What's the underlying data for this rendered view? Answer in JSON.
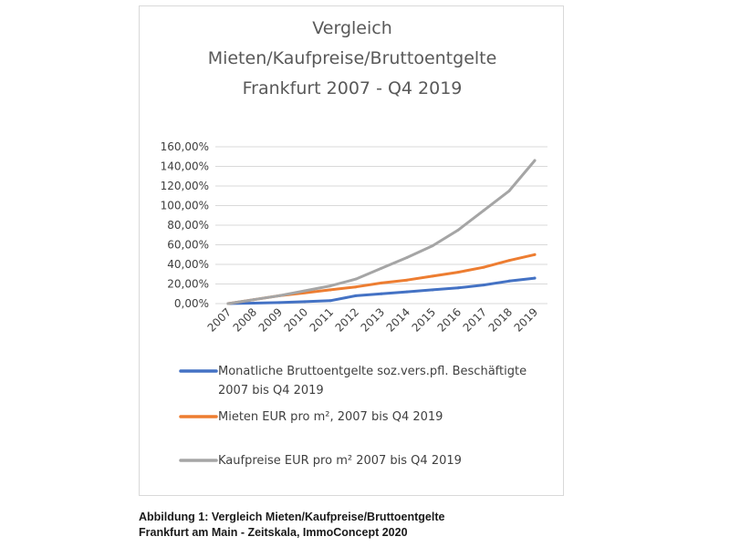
{
  "chart_data": {
    "type": "line",
    "title": [
      "Vergleich",
      "Mieten/Kaufpreise/Bruttoentgelte",
      "Frankfurt 2007 - Q4 2019"
    ],
    "categories": [
      "2007",
      "2008",
      "2009",
      "2010",
      "2011",
      "2012",
      "2013",
      "2014",
      "2015",
      "2016",
      "2017",
      "2018",
      "2019"
    ],
    "yticks": [
      "0,00%",
      "20,00%",
      "40,00%",
      "60,00%",
      "80,00%",
      "100,00%",
      "120,00%",
      "140,00%",
      "160,00%"
    ],
    "ylim": [
      0,
      160
    ],
    "grid": true,
    "legend_position": "bottom",
    "series": [
      {
        "name": [
          "Monatliche Bruttoentgelte soz.vers.pfl. Beschäftigte",
          "2007 bis Q4 2019"
        ],
        "color": "#4472c4",
        "values": [
          0,
          0.5,
          1,
          2,
          3,
          8,
          10,
          12,
          14,
          16,
          19,
          23,
          26
        ]
      },
      {
        "name": [
          "Mieten EUR pro m², 2007 bis Q4 2019"
        ],
        "color": "#ed7d31",
        "values": [
          0,
          4,
          8,
          11,
          14,
          17,
          21,
          24,
          28,
          32,
          37,
          44,
          50
        ]
      },
      {
        "name": [
          "Kaufpreise EUR pro m² 2007 bis Q4 2019"
        ],
        "color": "#a5a5a5",
        "values": [
          0,
          4,
          8,
          13,
          18,
          25,
          36,
          47,
          59,
          75,
          95,
          115,
          146
        ]
      }
    ]
  },
  "caption": {
    "line1": "Abbildung 1: Vergleich Mieten/Kaufpreise/Bruttoentgelte",
    "line2": "Frankfurt am Main - Zeitskala, ImmoConcept 2020"
  }
}
